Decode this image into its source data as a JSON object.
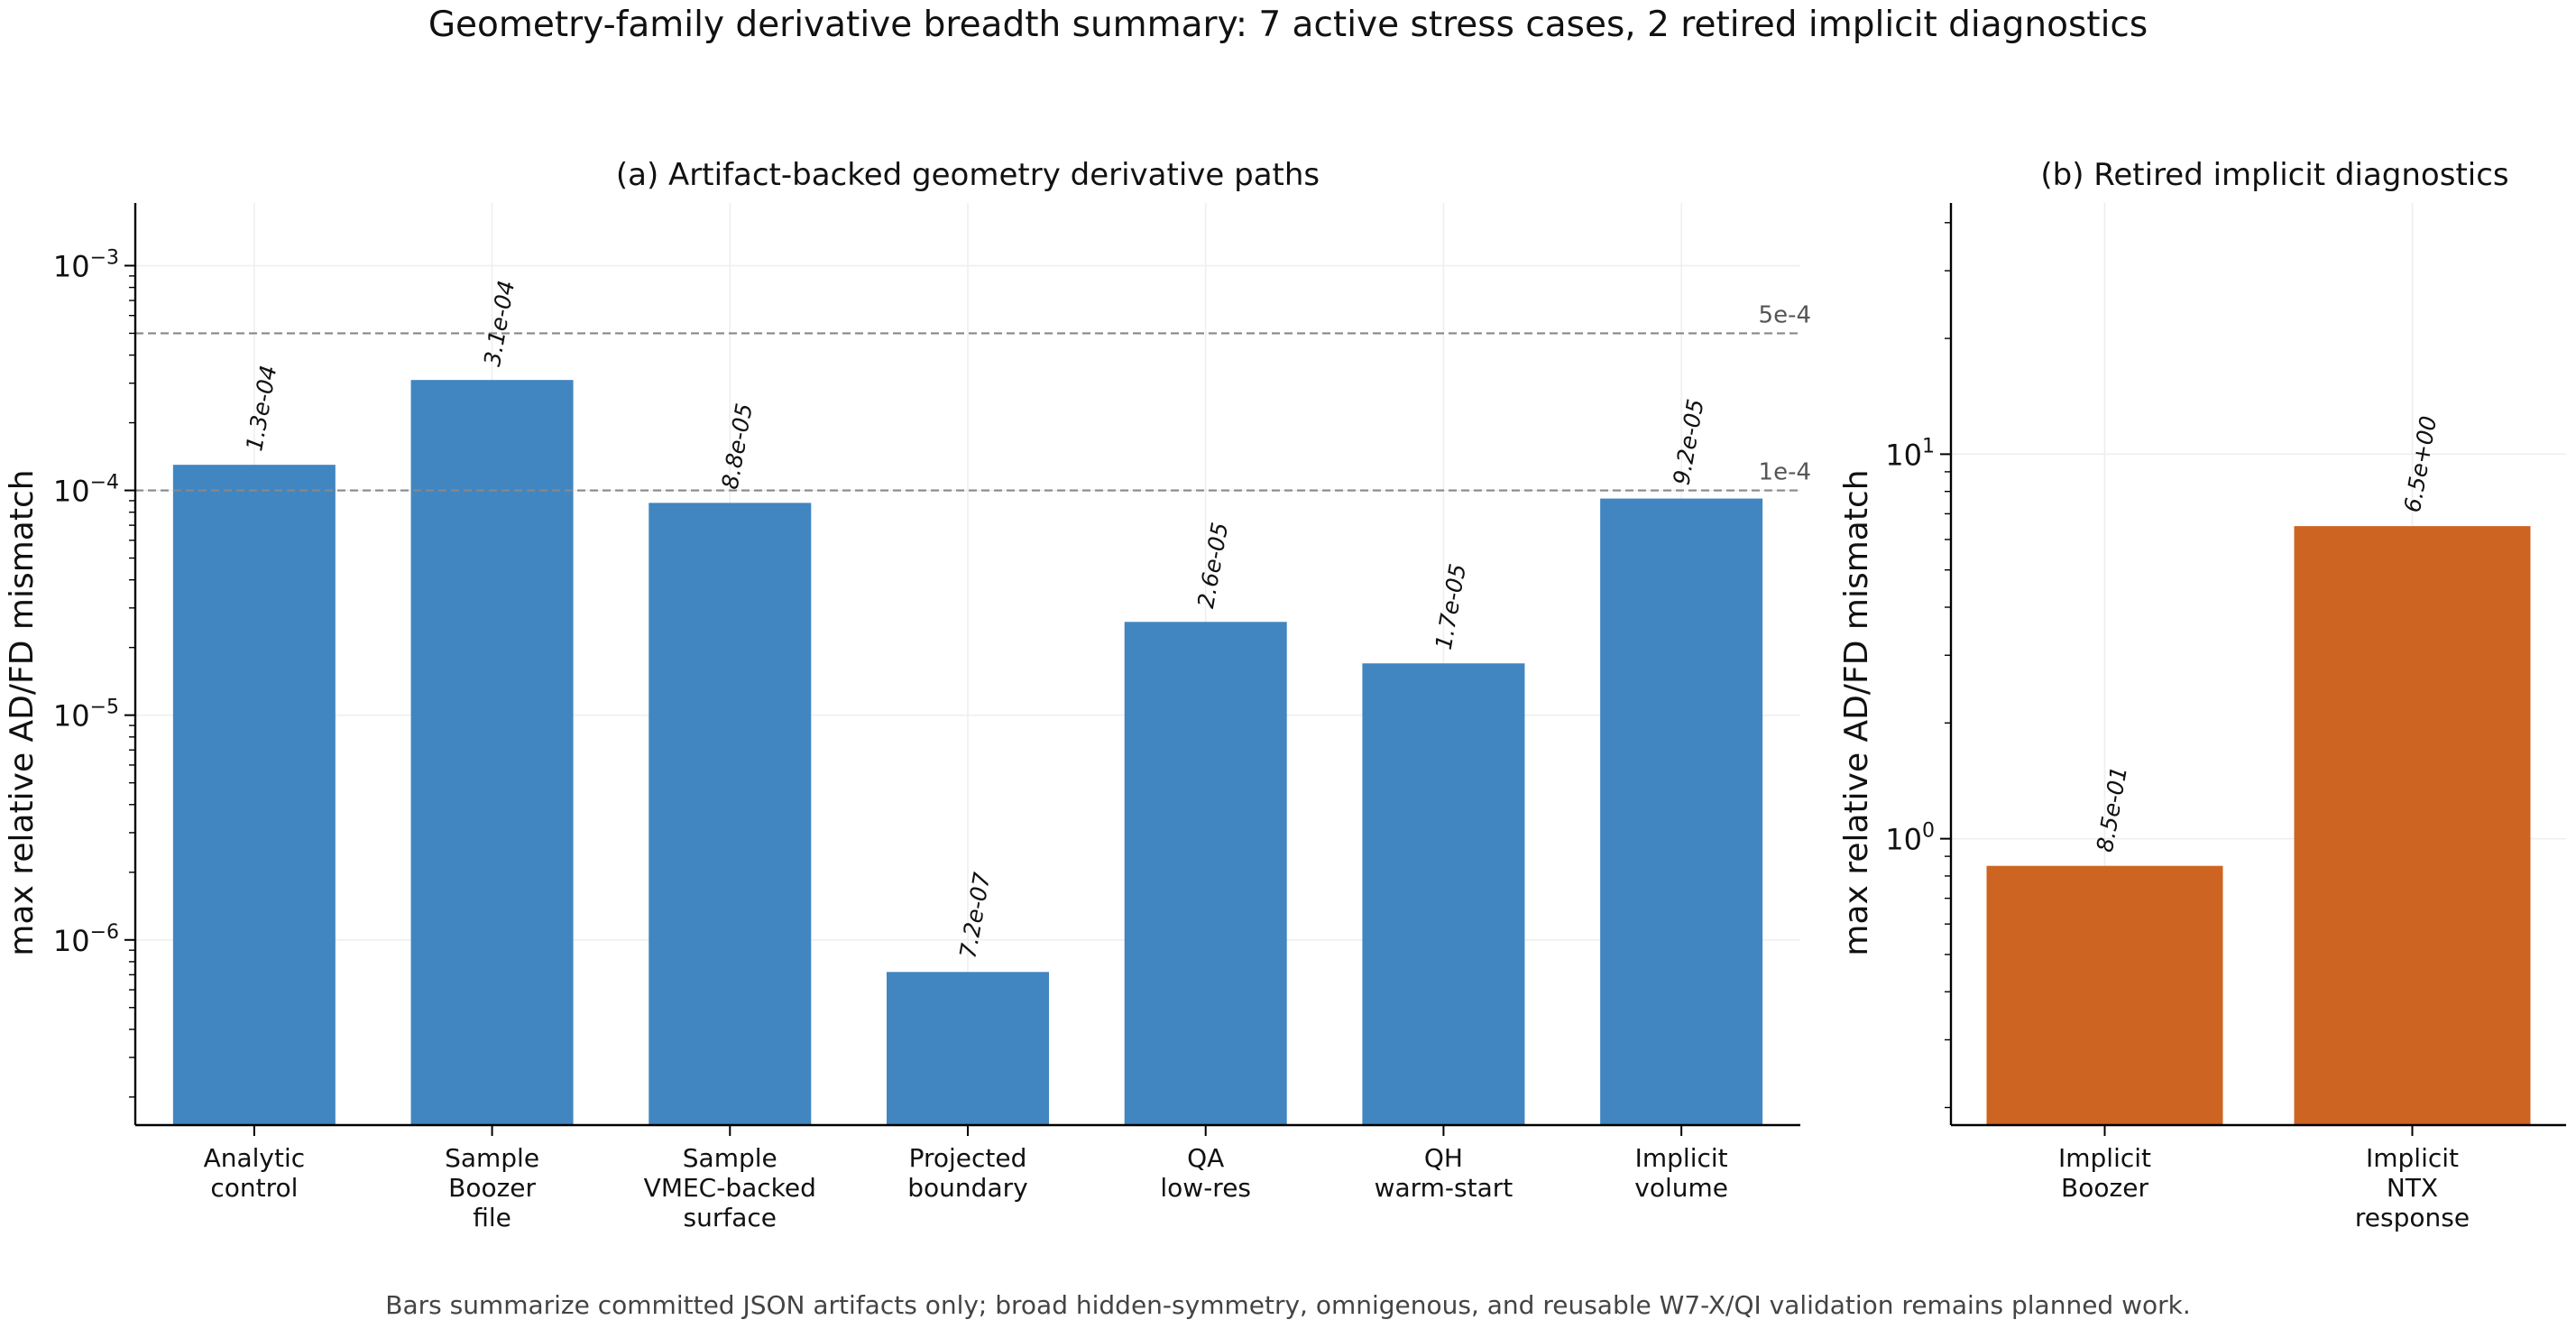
{
  "suptitle": "Geometry-family derivative breadth summary: 7 active stress cases, 2 retired implicit diagnostics",
  "footnote": "Bars summarize committed JSON artifacts only; broad hidden-symmetry, omnigenous, and reusable W7-X/QI validation remains planned work.",
  "colors": {
    "active_bar": "#3b82be",
    "retired_bar": "#cc5f1a",
    "reference_line": "#888888",
    "grid": "#eeeeee",
    "text": "#111111"
  },
  "chart_data": [
    {
      "type": "bar",
      "title": "(a) Artifact-backed geometry derivative paths",
      "ylabel": "max relative AD/FD mismatch",
      "yscale": "log",
      "ylim": [
        1.5e-07,
        0.0019
      ],
      "grid": true,
      "categories": [
        [
          "Analytic",
          "control"
        ],
        [
          "Sample",
          "Boozer",
          "file"
        ],
        [
          "Sample",
          "VMEC-backed",
          "surface"
        ],
        [
          "Projected",
          "boundary"
        ],
        [
          "QA",
          "low-res"
        ],
        [
          "QH",
          "warm-start"
        ],
        [
          "Implicit",
          "volume"
        ]
      ],
      "values": [
        0.00013,
        0.00031,
        8.8e-05,
        7.2e-07,
        2.6e-05,
        1.7e-05,
        9.2e-05
      ],
      "value_labels": [
        "1.3e-04",
        "3.1e-04",
        "8.8e-05",
        "7.2e-07",
        "2.6e-05",
        "1.7e-05",
        "9.2e-05"
      ],
      "major_ticks": [
        1e-06,
        1e-05,
        0.0001,
        0.001
      ],
      "tick_labels": [
        {
          "base": "10",
          "exp": "−6"
        },
        {
          "base": "10",
          "exp": "−5"
        },
        {
          "base": "10",
          "exp": "−4"
        },
        {
          "base": "10",
          "exp": "−3"
        }
      ],
      "reference_lines": [
        {
          "value": 0.0005,
          "label": "5e-4"
        },
        {
          "value": 0.0001,
          "label": "1e-4"
        }
      ]
    },
    {
      "type": "bar",
      "title": "(b) Retired implicit diagnostics",
      "ylabel": "max relative AD/FD mismatch",
      "yscale": "log",
      "ylim": [
        0.18,
        45
      ],
      "grid": true,
      "categories": [
        [
          "Implicit",
          "Boozer"
        ],
        [
          "Implicit",
          "NTX",
          "response"
        ]
      ],
      "values": [
        0.85,
        6.5
      ],
      "value_labels": [
        "8.5e-01",
        "6.5e+00"
      ],
      "major_ticks": [
        1,
        10
      ],
      "tick_labels": [
        {
          "base": "10",
          "exp": "0"
        },
        {
          "base": "10",
          "exp": "1"
        }
      ],
      "reference_lines": []
    }
  ]
}
